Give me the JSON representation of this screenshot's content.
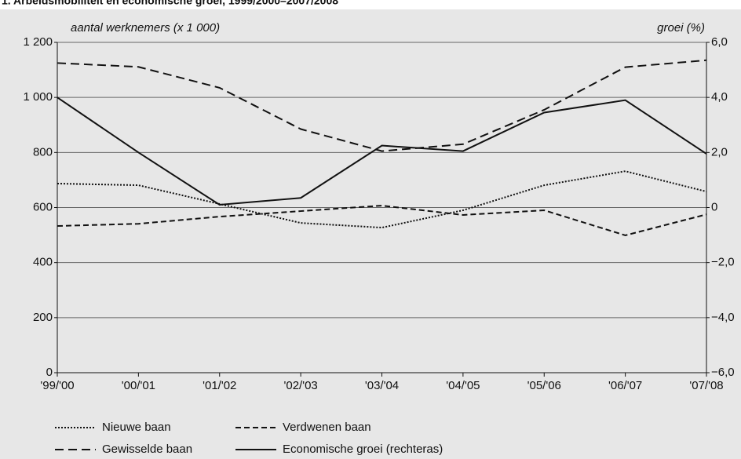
{
  "chart_data": {
    "type": "line",
    "title": "1. Arbeidsmobiliteit en economische groei, 1999/2000–2007/2008",
    "y_label": "aantal werknemers (x 1 000)",
    "y2_label": "groei (%)",
    "categories": [
      "'99/'00",
      "'00/'01",
      "'01/'02",
      "'02/'03",
      "'03/'04",
      "'04/'05",
      "'05/'06",
      "'06/'07",
      "'07/'08"
    ],
    "series": [
      {
        "name": "Nieuwe baan",
        "color": "#111111",
        "style": "dotted",
        "values": [
          687,
          681,
          613,
          544,
          527,
          590,
          681,
          732,
          658
        ]
      },
      {
        "name": "Verdwenen baan",
        "color": "#111111",
        "style": "dashed",
        "values": [
          533,
          541,
          567,
          587,
          607,
          573,
          590,
          499,
          575
        ]
      },
      {
        "name": "Gewisselde baan",
        "color": "#111111",
        "style": "long-dashed",
        "values": [
          1125,
          1111,
          1035,
          885,
          805,
          830,
          955,
          1110,
          1135
        ]
      },
      {
        "name": "Economische groei (rechteras)",
        "color": "#111111",
        "style": "solid",
        "axis": "y2",
        "values": [
          4.0,
          2.0,
          0.1,
          0.35,
          2.25,
          2.05,
          3.45,
          3.9,
          1.95
        ]
      }
    ],
    "ylim": [
      0,
      1200
    ],
    "yticks": [
      0,
      200,
      400,
      600,
      800,
      {
        "value": 1000,
        "label": "1 000"
      },
      {
        "value": 1200,
        "label": "1 200"
      }
    ],
    "y2lim": [
      -6,
      6
    ],
    "y2ticks": [
      {
        "value": -6,
        "label": "−6,0"
      },
      {
        "value": -4,
        "label": "−4,0"
      },
      {
        "value": -2,
        "label": "−2,0"
      },
      0,
      {
        "value": 2,
        "label": "2,0"
      },
      {
        "value": 4,
        "label": "4,0"
      },
      {
        "value": 6,
        "label": "6,0"
      }
    ],
    "grid": true
  }
}
